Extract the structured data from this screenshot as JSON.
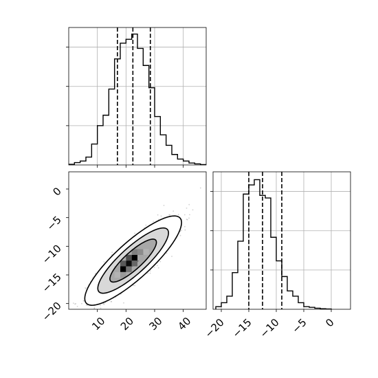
{
  "chart_data": [
    {
      "id": "hist_x",
      "type": "histogram",
      "title": "",
      "xlabel": "",
      "ylabel": "",
      "xlim": [
        0,
        48
      ],
      "ylim": [
        0,
        1.05
      ],
      "grid": true,
      "bin_start": 0,
      "bin_width": 2,
      "counts": [
        0.005,
        0.018,
        0.03,
        0.06,
        0.16,
        0.3,
        0.38,
        0.58,
        0.81,
        0.93,
        0.96,
        1.0,
        0.89,
        0.76,
        0.59,
        0.37,
        0.23,
        0.15,
        0.08,
        0.045,
        0.03,
        0.015,
        0.008,
        0.003
      ],
      "quantile_lines": [
        17.0,
        22.4,
        28.5
      ],
      "x_ticks": [
        10,
        20,
        30,
        40
      ],
      "x_tick_labels": []
    },
    {
      "id": "scatter_xy",
      "type": "scatter",
      "title": "",
      "xlabel": "",
      "ylabel": "",
      "xlim": [
        0,
        48
      ],
      "ylim": [
        -21,
        3
      ],
      "grid": false,
      "overlay": "density contours (68%, 95%, 99%) with 2D histogram shading",
      "distribution": {
        "mean": [
          22.5,
          -12.5
        ],
        "std": [
          6.5,
          3.0
        ],
        "correlation": 0.85
      },
      "density_cells": [
        {
          "x": 19,
          "y": -14,
          "level": 1.0
        },
        {
          "x": 21,
          "y": -13,
          "level": 0.95
        },
        {
          "x": 23,
          "y": -12,
          "level": 1.0
        },
        {
          "x": 19,
          "y": -13,
          "level": 0.65
        },
        {
          "x": 21,
          "y": -12,
          "level": 0.7
        },
        {
          "x": 23,
          "y": -13,
          "level": 0.6
        },
        {
          "x": 21,
          "y": -14,
          "level": 0.55
        },
        {
          "x": 25,
          "y": -11,
          "level": 0.45
        },
        {
          "x": 17,
          "y": -14,
          "level": 0.35
        },
        {
          "x": 17,
          "y": -15,
          "level": 0.3
        },
        {
          "x": 25,
          "y": -12,
          "level": 0.35
        },
        {
          "x": 23,
          "y": -11,
          "level": 0.5
        },
        {
          "x": 19,
          "y": -15,
          "level": 0.4
        },
        {
          "x": 27,
          "y": -11,
          "level": 0.3
        }
      ],
      "x_ticks": [
        10,
        20,
        30,
        40
      ],
      "x_tick_labels": [
        "10",
        "20",
        "30",
        "40"
      ],
      "y_ticks": [
        0,
        -5,
        -10,
        -15,
        -20
      ],
      "y_tick_labels": [
        "0",
        "−5",
        "−10",
        "−15",
        "−20"
      ]
    },
    {
      "id": "hist_y",
      "type": "histogram",
      "title": "",
      "xlabel": "",
      "ylabel": "",
      "xlim": [
        -21.5,
        3.5
      ],
      "ylim": [
        0,
        1.05
      ],
      "grid": true,
      "bin_start": -21,
      "bin_width": 1,
      "counts": [
        0.02,
        0.05,
        0.1,
        0.28,
        0.52,
        0.88,
        0.95,
        0.99,
        0.87,
        0.85,
        0.55,
        0.37,
        0.25,
        0.14,
        0.1,
        0.05,
        0.02,
        0.015,
        0.008,
        0.004,
        0.002
      ],
      "quantile_lines": [
        -15.0,
        -12.5,
        -9.0
      ],
      "x_ticks": [
        -20,
        -15,
        -10,
        -5,
        0
      ],
      "x_tick_labels": [
        "−20",
        "−15",
        "−10",
        "−5",
        "0"
      ]
    }
  ],
  "style": {
    "line_color": "#000000",
    "grid_color": "#b0b0b0",
    "scatter_color": "#9a9a9a",
    "frame_color": "#000000"
  }
}
